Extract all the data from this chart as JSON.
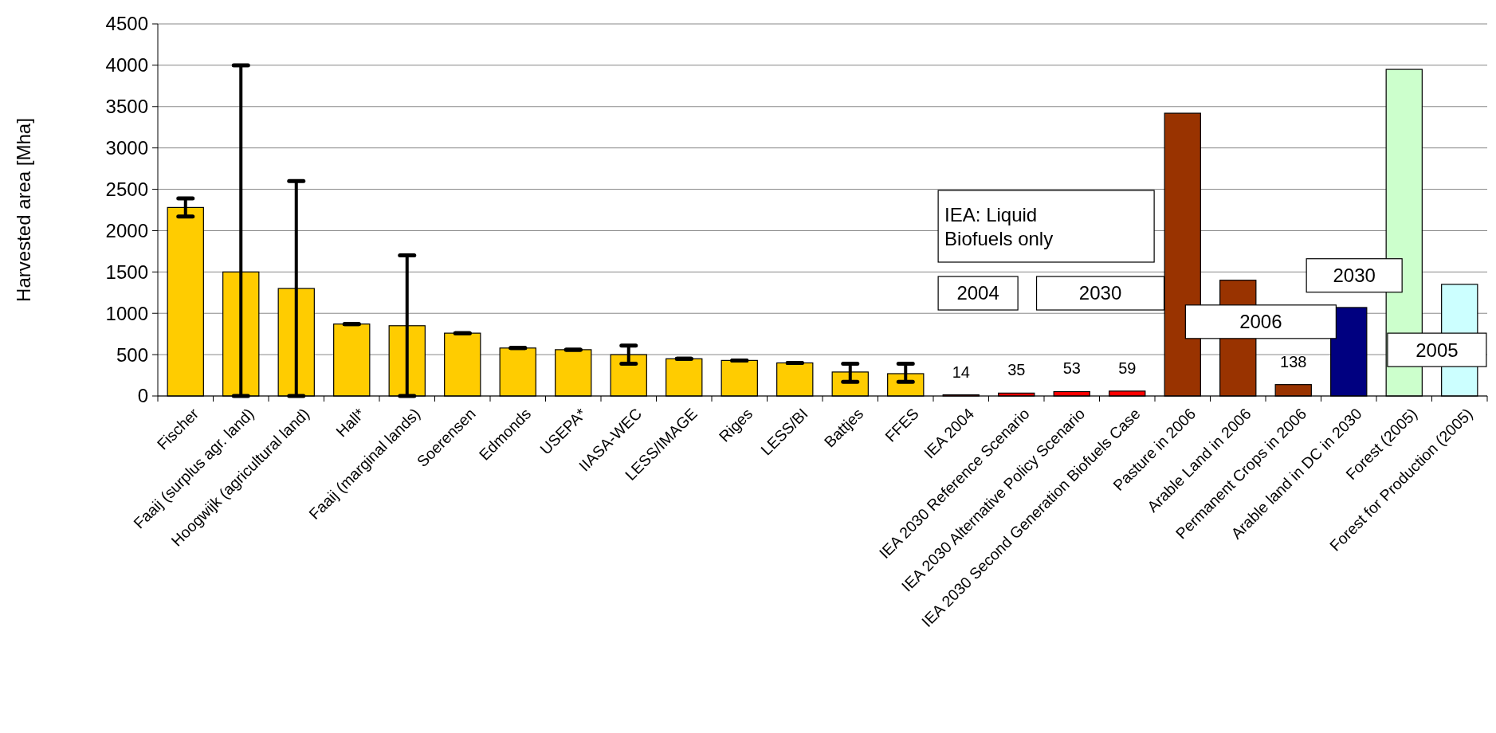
{
  "chart_data": {
    "type": "bar",
    "ylabel": "Harvested area [Mha]",
    "categories": [
      "Fischer",
      "Faaij (surplus agr. land)",
      "Hoogwijk (agricultural land)",
      "Hall*",
      "Faaij (marginal lands)",
      "Soerensen",
      "Edmonds",
      "USEPA*",
      "IIASA-WEC",
      "LESS/IMAGE",
      "Riges",
      "LESS/BI",
      "Battjes",
      "FFES",
      "IEA 2004",
      "IEA 2030 Reference Scenario",
      "IEA 2030 Alternative Policy Scenario",
      "IEA 2030 Second Generation Biofuels Case",
      "Pasture in 2006",
      "Arable Land in 2006",
      "Permanent Crops in 2006",
      "Arable land in DC in 2030",
      "Forest (2005)",
      "Forest for Production (2005)"
    ],
    "values": [
      2280,
      1500,
      1300,
      870,
      850,
      760,
      580,
      560,
      500,
      450,
      430,
      400,
      290,
      270,
      14,
      35,
      53,
      59,
      3420,
      1400,
      138,
      1070,
      3950,
      1350
    ],
    "colors": [
      "#ffcc00",
      "#ffcc00",
      "#ffcc00",
      "#ffcc00",
      "#ffcc00",
      "#ffcc00",
      "#ffcc00",
      "#ffcc00",
      "#ffcc00",
      "#ffcc00",
      "#ffcc00",
      "#ffcc00",
      "#ffcc00",
      "#ffcc00",
      "#ff0000",
      "#ff0000",
      "#ff0000",
      "#ff0000",
      "#993300",
      "#993300",
      "#993300",
      "#000080",
      "#ccffcc",
      "#ccffff"
    ],
    "errors": [
      [
        2170,
        2390
      ],
      [
        0,
        4000
      ],
      [
        0,
        2600
      ],
      [
        870,
        870
      ],
      [
        0,
        1700
      ],
      [
        760,
        760
      ],
      [
        580,
        580
      ],
      [
        560,
        560
      ],
      [
        390,
        610
      ],
      [
        450,
        450
      ],
      [
        430,
        430
      ],
      [
        400,
        400
      ],
      [
        170,
        390
      ],
      [
        170,
        390
      ],
      null,
      null,
      null,
      null,
      null,
      null,
      null,
      null,
      null,
      null
    ],
    "value_labels": [
      null,
      null,
      null,
      null,
      null,
      null,
      null,
      null,
      null,
      null,
      null,
      null,
      null,
      null,
      "14",
      "35",
      "53",
      "59",
      null,
      null,
      "138",
      null,
      null,
      null
    ],
    "ylim": [
      0,
      4500
    ],
    "yticks": [
      0,
      500,
      1000,
      1500,
      2000,
      2500,
      3000,
      3500,
      4000,
      4500
    ],
    "grid": "y",
    "annotations": [
      "IEA: Liquid Biofuels only",
      "2004",
      "2030",
      "2006",
      "2030",
      "2005"
    ]
  }
}
